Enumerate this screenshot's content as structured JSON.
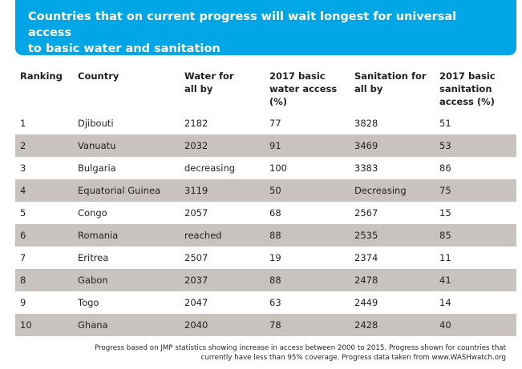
{
  "banner": {
    "title_line1": "Countries that on current progress will wait longest for universal access",
    "title_line2": "to basic water and sanitation"
  },
  "table": {
    "headers": {
      "ranking": [
        "Ranking"
      ],
      "country": [
        "Country"
      ],
      "water_by": [
        "Water for",
        "all by"
      ],
      "water_access": [
        "2017 basic",
        "water access",
        "(%)"
      ],
      "sanitation_by": [
        "Sanitation for",
        "all by"
      ],
      "sanitation_access": [
        "2017 basic",
        "sanitation",
        "access (%)"
      ]
    },
    "rows": [
      [
        "1",
        "Djibouti",
        "2182",
        "77",
        "3828",
        "51"
      ],
      [
        "2",
        "Vanuatu",
        "2032",
        "91",
        "3469",
        "53"
      ],
      [
        "3",
        "Bulgaria",
        "decreasing",
        "100",
        "3383",
        "86"
      ],
      [
        "4",
        "Equatorial Guinea",
        "3119",
        "50",
        "Decreasing",
        "75"
      ],
      [
        "5",
        "Congo",
        "2057",
        "68",
        "2567",
        "15"
      ],
      [
        "6",
        "Romania",
        "reached",
        "88",
        "2535",
        "85"
      ],
      [
        "7",
        "Eritrea",
        "2507",
        "19",
        "2374",
        "11"
      ],
      [
        "8",
        "Gabon",
        "2037",
        "88",
        "2478",
        "41"
      ],
      [
        "9",
        "Togo",
        "2047",
        "63",
        "2449",
        "14"
      ],
      [
        "10",
        "Ghana",
        "2040",
        "78",
        "2428",
        "40"
      ]
    ]
  },
  "footnote": {
    "line1": "Progress based on JMP statistics showing increase in access between 2000 to 2015. Progress shown for countries that",
    "line2": "currently have less than 95% coverage. Progress data taken from www.WASHwatch.org"
  },
  "colors": {
    "banner": "#00a6e5",
    "stripe": "#c9c3bf"
  }
}
